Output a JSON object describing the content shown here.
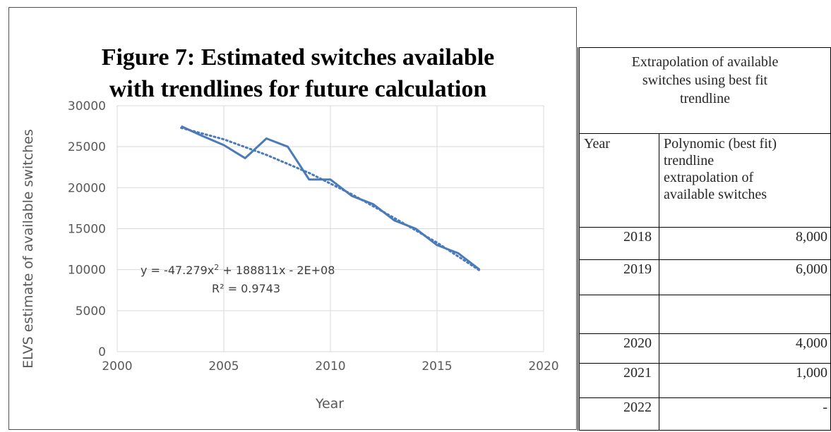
{
  "chart_data": {
    "type": "line",
    "title_lines": [
      "Figure 7:  Estimated switches available",
      "with trendlines for future calculation"
    ],
    "xlabel": "Year",
    "ylabel": "ELVS estimate of available switches",
    "xlim": [
      2000,
      2020
    ],
    "ylim": [
      0,
      30000
    ],
    "x_ticks": [
      2000,
      2005,
      2010,
      2015,
      2020
    ],
    "y_ticks": [
      0,
      5000,
      10000,
      15000,
      20000,
      25000,
      30000
    ],
    "grid": true,
    "legend": "none",
    "series": [
      {
        "style": "solid",
        "color": "#4a7ab8",
        "x": [
          2003,
          2004,
          2005,
          2006,
          2007,
          2008,
          2009,
          2010,
          2011,
          2012,
          2013,
          2014,
          2015,
          2016,
          2017
        ],
        "y": [
          27500,
          26300,
          25200,
          23600,
          26000,
          25000,
          21000,
          21000,
          19000,
          18000,
          16000,
          15000,
          13000,
          12000,
          10000
        ]
      }
    ],
    "trendline": {
      "style": "dotted",
      "color": "#4a7ab8",
      "x": [
        2003,
        2005,
        2007,
        2009,
        2011,
        2013,
        2015,
        2017
      ],
      "y": [
        27300,
        25900,
        24000,
        21800,
        19200,
        16300,
        13300,
        9900
      ]
    },
    "annotations": {
      "equation_prefix": "y = -47.279x",
      "equation_exp": "2",
      "equation_suffix": " + 188811x - 2E+08",
      "r2_prefix": "R",
      "r2_exp": "²",
      "r2_value": " = 0.9743"
    }
  },
  "table": {
    "caption": [
      "Extrapolation of available",
      "switches using best fit",
      "trendline"
    ],
    "col_year": "Year",
    "col_value": [
      "Polynomic (best fit)",
      "trendline",
      "extrapolation of",
      "available switches"
    ],
    "rows": [
      {
        "year": "2018",
        "value": "8,000"
      },
      {
        "year": "2019",
        "value": "6,000"
      },
      {
        "year": "",
        "value": ""
      },
      {
        "year": "2020",
        "value": "4,000"
      },
      {
        "year": "2021",
        "value": "1,000"
      },
      {
        "year": "2022",
        "value": "-"
      }
    ]
  }
}
